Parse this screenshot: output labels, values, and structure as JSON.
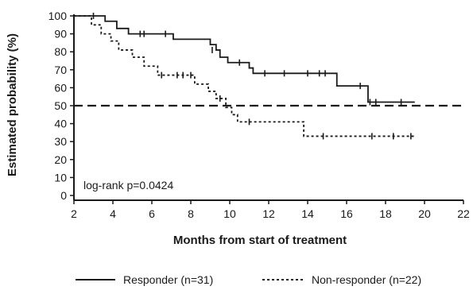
{
  "chart_data": {
    "type": "line",
    "title": "",
    "xlabel": "Months from start of treatment",
    "ylabel": "Estimated probability (%)",
    "xlim": [
      2,
      22
    ],
    "ylim": [
      0,
      100
    ],
    "xticks": [
      2,
      4,
      6,
      8,
      10,
      12,
      14,
      16,
      18,
      20,
      22
    ],
    "yticks": [
      0,
      10,
      20,
      30,
      40,
      50,
      60,
      70,
      80,
      90,
      100
    ],
    "grid": false,
    "legend_position": "bottom",
    "annotation": "log-rank p=0.0424",
    "reference_line": {
      "y": 50,
      "style": "dashed"
    },
    "series": [
      {
        "name": "Responder (n=31)",
        "style": "solid",
        "color": "#1a1a1a",
        "steps": [
          [
            2,
            100
          ],
          [
            3.6,
            97
          ],
          [
            4.2,
            93
          ],
          [
            4.8,
            90
          ],
          [
            7.1,
            87
          ],
          [
            9.0,
            84
          ],
          [
            9.3,
            81
          ],
          [
            9.5,
            77
          ],
          [
            9.9,
            74
          ],
          [
            11.0,
            71
          ],
          [
            11.2,
            68
          ],
          [
            15.5,
            61
          ],
          [
            17.1,
            52
          ],
          [
            19.5,
            52
          ]
        ],
        "censored": [
          [
            3.0,
            100
          ],
          [
            5.4,
            90
          ],
          [
            5.6,
            90
          ],
          [
            6.7,
            90
          ],
          [
            9.1,
            81
          ],
          [
            10.5,
            74
          ],
          [
            11.8,
            68
          ],
          [
            12.8,
            68
          ],
          [
            14.0,
            68
          ],
          [
            14.6,
            68
          ],
          [
            14.9,
            68
          ],
          [
            16.7,
            61
          ],
          [
            17.2,
            52
          ],
          [
            17.5,
            52
          ],
          [
            18.8,
            52
          ]
        ]
      },
      {
        "name": "Non-responder (n=22)",
        "style": "dashed",
        "color": "#1a1a1a",
        "steps": [
          [
            2,
            100
          ],
          [
            2.9,
            95
          ],
          [
            3.4,
            90
          ],
          [
            3.9,
            86
          ],
          [
            4.3,
            81
          ],
          [
            5.0,
            77
          ],
          [
            5.6,
            72
          ],
          [
            6.3,
            67
          ],
          [
            8.2,
            62
          ],
          [
            8.9,
            58
          ],
          [
            9.3,
            54
          ],
          [
            9.8,
            49
          ],
          [
            10.1,
            45
          ],
          [
            10.4,
            41
          ],
          [
            13.8,
            33
          ],
          [
            19.5,
            33
          ]
        ],
        "censored": [
          [
            6.5,
            67
          ],
          [
            7.3,
            67
          ],
          [
            7.6,
            67
          ],
          [
            8.0,
            67
          ],
          [
            9.5,
            54
          ],
          [
            11.0,
            41
          ],
          [
            14.8,
            33
          ],
          [
            17.3,
            33
          ],
          [
            18.4,
            33
          ],
          [
            19.3,
            33
          ]
        ]
      }
    ]
  }
}
